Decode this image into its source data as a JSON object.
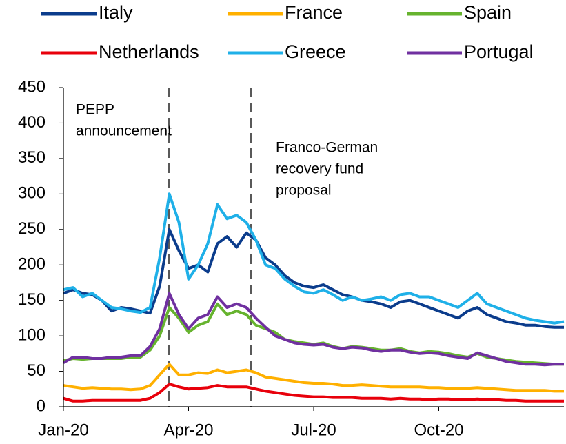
{
  "chart_data": {
    "type": "line",
    "categories": [
      "Jan-20",
      null,
      null,
      null,
      null,
      null,
      null,
      null,
      null,
      null,
      null,
      null,
      null,
      "Apr-20",
      null,
      null,
      null,
      null,
      null,
      null,
      null,
      null,
      null,
      null,
      null,
      null,
      "Jul-20",
      null,
      null,
      null,
      null,
      null,
      null,
      null,
      null,
      null,
      null,
      null,
      null,
      "Oct-20",
      null,
      null,
      null,
      null,
      null,
      null,
      null,
      null,
      null,
      null,
      null,
      null,
      null
    ],
    "series": [
      {
        "name": "Italy",
        "color": "#0b3c8c",
        "values": [
          160,
          165,
          160,
          158,
          150,
          135,
          140,
          138,
          135,
          132,
          170,
          250,
          220,
          195,
          200,
          190,
          230,
          240,
          225,
          245,
          235,
          210,
          200,
          185,
          175,
          170,
          168,
          172,
          165,
          158,
          155,
          150,
          148,
          145,
          140,
          148,
          150,
          145,
          140,
          135,
          130,
          125,
          135,
          140,
          130,
          125,
          120,
          118,
          115,
          115,
          113,
          112,
          112
        ]
      },
      {
        "name": "France",
        "color": "#ffb000",
        "values": [
          30,
          28,
          26,
          27,
          26,
          25,
          25,
          24,
          25,
          30,
          45,
          60,
          45,
          45,
          48,
          47,
          52,
          48,
          50,
          52,
          48,
          42,
          40,
          38,
          36,
          34,
          33,
          33,
          32,
          30,
          30,
          31,
          30,
          29,
          28,
          28,
          28,
          28,
          27,
          27,
          26,
          26,
          26,
          27,
          26,
          25,
          24,
          23,
          23,
          23,
          23,
          22,
          22
        ]
      },
      {
        "name": "Spain",
        "color": "#66b32e",
        "values": [
          65,
          68,
          67,
          68,
          68,
          68,
          68,
          70,
          70,
          80,
          100,
          140,
          125,
          105,
          115,
          120,
          145,
          130,
          135,
          130,
          115,
          110,
          105,
          95,
          92,
          90,
          88,
          90,
          85,
          82,
          85,
          84,
          82,
          80,
          80,
          82,
          78,
          76,
          78,
          77,
          75,
          72,
          70,
          75,
          70,
          68,
          66,
          64,
          63,
          62,
          61,
          60,
          60
        ]
      },
      {
        "name": "Netherlands",
        "color": "#e8000b",
        "values": [
          12,
          8,
          8,
          9,
          9,
          9,
          9,
          9,
          9,
          12,
          20,
          32,
          28,
          25,
          26,
          27,
          30,
          28,
          28,
          28,
          25,
          22,
          20,
          18,
          16,
          15,
          14,
          14,
          13,
          13,
          13,
          12,
          12,
          12,
          11,
          12,
          11,
          11,
          10,
          11,
          11,
          10,
          10,
          11,
          10,
          10,
          9,
          9,
          8,
          8,
          8,
          8,
          8
        ]
      },
      {
        "name": "Greece",
        "color": "#1fb0e8",
        "values": [
          165,
          168,
          155,
          160,
          150,
          140,
          138,
          135,
          133,
          140,
          210,
          300,
          260,
          180,
          200,
          230,
          285,
          265,
          270,
          260,
          235,
          200,
          195,
          180,
          170,
          162,
          160,
          165,
          158,
          150,
          155,
          150,
          152,
          155,
          150,
          158,
          160,
          155,
          155,
          150,
          145,
          140,
          150,
          160,
          145,
          140,
          135,
          130,
          125,
          122,
          120,
          118,
          120
        ]
      },
      {
        "name": "Portugal",
        "color": "#7030a0",
        "values": [
          62,
          70,
          70,
          68,
          68,
          70,
          70,
          72,
          72,
          85,
          110,
          160,
          130,
          110,
          125,
          130,
          155,
          140,
          145,
          140,
          125,
          112,
          100,
          95,
          90,
          88,
          87,
          88,
          84,
          82,
          84,
          83,
          80,
          78,
          80,
          80,
          77,
          75,
          76,
          75,
          72,
          70,
          68,
          76,
          72,
          68,
          64,
          62,
          60,
          60,
          59,
          60,
          60
        ]
      }
    ],
    "ylim": [
      0,
      450
    ],
    "yticks": [
      0,
      50,
      100,
      150,
      200,
      250,
      300,
      350,
      400,
      450
    ],
    "annotations": [
      {
        "text": [
          "PEPP",
          "announcement"
        ]
      },
      {
        "text": [
          "Franco-German",
          "recovery fund",
          "proposal"
        ]
      }
    ]
  }
}
